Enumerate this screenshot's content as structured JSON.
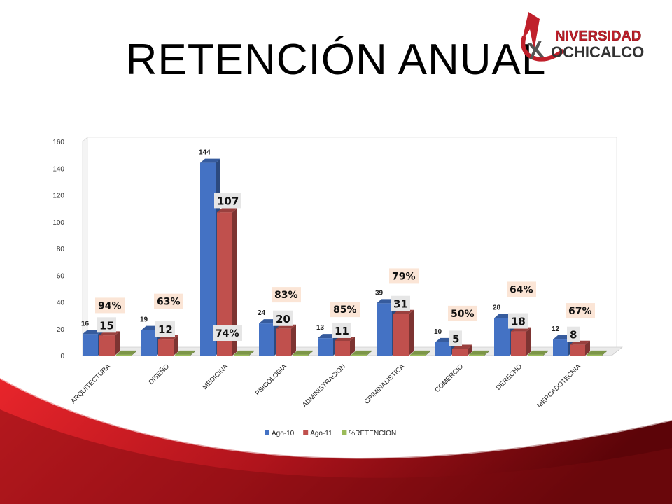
{
  "slide": {
    "title": "RETENCIÓN ANUAL"
  },
  "logo": {
    "line1": "NIVERSIDAD",
    "line2": "OCHICALCO",
    "brand_color": "#c0202b"
  },
  "chart_data": {
    "type": "bar",
    "categories": [
      "ARQUITECTURA",
      "DISEÑO",
      "MEDICINA",
      "PSICOLOGIA",
      "ADMINISTRACION",
      "CRIMINALISTICA",
      "COMERCIO",
      "DERECHO",
      "MERCADOTECNIA"
    ],
    "series": [
      {
        "name": "Ago-10",
        "values": [
          16,
          19,
          144,
          24,
          13,
          39,
          10,
          28,
          12
        ],
        "color": "#4472c4"
      },
      {
        "name": "Ago-11",
        "values": [
          15,
          12,
          107,
          20,
          11,
          31,
          5,
          18,
          8
        ],
        "color": "#c0504d"
      },
      {
        "name": "%RETENCION",
        "values": [
          0.94,
          0.63,
          0.74,
          0.83,
          0.85,
          0.79,
          0.5,
          0.64,
          0.67
        ],
        "color": "#9bbb59"
      }
    ],
    "retention_labels": [
      "94%",
      "63%",
      "74%",
      "83%",
      "85%",
      "79%",
      "50%",
      "64%",
      "67%"
    ],
    "ylim": [
      0,
      160
    ],
    "yticks": [
      0,
      20,
      40,
      60,
      80,
      100,
      120,
      140,
      160
    ],
    "legend": "bottom"
  }
}
